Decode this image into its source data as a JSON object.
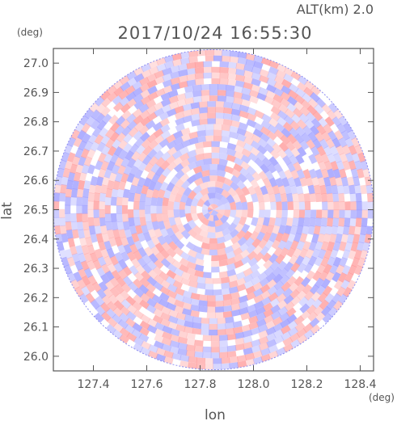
{
  "chart_data": {
    "type": "heatmap",
    "title": "2017/10/24 16:55:30",
    "subtitle": "ALT(km) 2.0",
    "xlabel": "lon",
    "ylabel": "lat",
    "x_unit": "(deg)",
    "y_unit": "(deg)",
    "xlim": [
      127.25,
      128.45
    ],
    "ylim": [
      25.95,
      27.05
    ],
    "x_ticks": [
      "127.4",
      "127.6",
      "127.8",
      "128.0",
      "128.2",
      "128.4"
    ],
    "y_ticks": [
      "26.0",
      "26.1",
      "26.2",
      "26.3",
      "26.4",
      "26.5",
      "26.6",
      "26.7",
      "26.8",
      "26.9",
      "27.0"
    ],
    "center": {
      "lon": 127.85,
      "lat": 26.5
    },
    "radius_deg": 0.6,
    "colors": {
      "positive": "#ff9999",
      "negative": "#9999ff",
      "neutral": "#ffffff",
      "axis": "#555555"
    }
  }
}
